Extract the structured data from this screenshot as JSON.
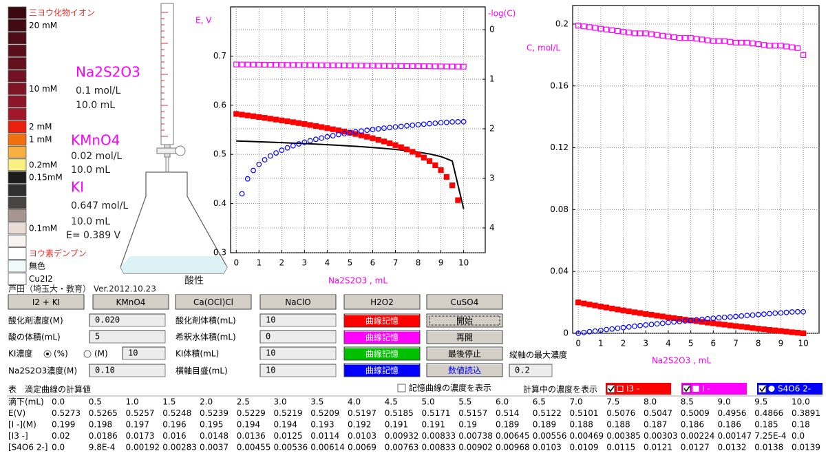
{
  "color_scale": [
    {
      "color": "#3a0810",
      "label": "三ヨウ化物イオン",
      "label_color": "#e8302a"
    },
    {
      "color": "#420a14",
      "label": "20 mM"
    },
    {
      "color": "#4e0c18"
    },
    {
      "color": "#5a0e1c"
    },
    {
      "color": "#66101e"
    },
    {
      "color": "#721222"
    },
    {
      "color": "#7e1426",
      "label": "10 mM"
    },
    {
      "color": "#8c1628"
    },
    {
      "color": "#a0182a"
    },
    {
      "color": "#e8200c",
      "label": "2 mM"
    },
    {
      "color": "#f07010",
      "label": "1 mM"
    },
    {
      "color": "#f8b040"
    },
    {
      "color": "#f8f080",
      "label": "0.2mM"
    },
    {
      "color": "#1c1c1c",
      "label": "0.15mM"
    },
    {
      "color": "#303030"
    },
    {
      "color": "#484444"
    },
    {
      "color": "#a89490"
    },
    {
      "color": "#e8dcd4",
      "label": "0.1mM"
    },
    {
      "color": "#f8f4f2"
    },
    {
      "color": "#ffffff",
      "label": "ヨウ素デンプン",
      "label_color": "#e8302a"
    },
    {
      "color": "#f0fafa",
      "label": "無色"
    },
    {
      "color": "#ffffff",
      "label": "Cu2I2"
    }
  ],
  "apparatus": {
    "titrant": {
      "name": "Na2S2O3",
      "concentration": "0.1 mol/L",
      "volume": "10.0 mL"
    },
    "oxidant": {
      "name": "KMnO4",
      "concentration": "0.02 mol/L",
      "volume": "10.0 mL"
    },
    "iodide": {
      "name": "KI",
      "concentration": "0.647 mol/L",
      "volume": "10.0 mL"
    },
    "potential": "E= 0.389 V",
    "condition": "酸性"
  },
  "credit": "芦田（埼玉大・教育）  Ver.2012.10.23",
  "chart_data": [
    {
      "type": "scatter",
      "ylabel": "E, V",
      "y2label": "-log(C)",
      "xlabel": "Na2S2O3 , mL",
      "label_color": "#ff00ff",
      "x": [
        0,
        0.25,
        0.5,
        0.75,
        1,
        1.25,
        1.5,
        1.75,
        2,
        2.25,
        2.5,
        2.75,
        3,
        3.25,
        3.5,
        3.75,
        4,
        4.25,
        4.5,
        4.75,
        5,
        5.25,
        5.5,
        5.75,
        6,
        6.25,
        6.5,
        6.75,
        7,
        7.25,
        7.5,
        7.75,
        8,
        8.25,
        8.5,
        8.75,
        9,
        9.25,
        9.5,
        9.75,
        10
      ],
      "xlim": [
        -0.25,
        10.95
      ],
      "xticks": [
        0,
        1,
        2,
        3,
        4,
        5,
        6,
        7,
        8,
        9,
        10
      ],
      "ylim": [
        0.3,
        0.8
      ],
      "yticks": [
        0.3,
        0.4,
        0.5,
        0.6,
        0.7
      ],
      "y2lim": [
        4.5,
        -0.46
      ],
      "y2ticks": [
        0,
        1,
        2,
        3,
        4
      ],
      "grid": true,
      "series": [
        {
          "marker": "line",
          "color": "#000000",
          "x": [
            0,
            0.5,
            1,
            1.5,
            2,
            2.5,
            3,
            3.5,
            4,
            4.5,
            5,
            5.5,
            6,
            6.5,
            7,
            7.5,
            8,
            8.5,
            9,
            9.5,
            10
          ],
          "values": [
            0.5273,
            0.5265,
            0.5257,
            0.5248,
            0.5239,
            0.5229,
            0.5219,
            0.5209,
            0.5197,
            0.5185,
            0.5171,
            0.5157,
            0.514,
            0.5122,
            0.5101,
            0.5076,
            0.5047,
            0.5009,
            0.4956,
            0.4866,
            0.3891
          ]
        },
        {
          "marker": "open-square",
          "color": "#ff00ff",
          "axis": "y2",
          "values": [
            0.701,
            0.702,
            0.703,
            0.704,
            0.705,
            0.707,
            0.708,
            0.709,
            0.71,
            0.711,
            0.712,
            0.713,
            0.714,
            0.715,
            0.716,
            0.718,
            0.719,
            0.72,
            0.721,
            0.722,
            0.723,
            0.724,
            0.725,
            0.726,
            0.727,
            0.729,
            0.73,
            0.731,
            0.732,
            0.733,
            0.734,
            0.735,
            0.736,
            0.737,
            0.738,
            0.74,
            0.741,
            0.742,
            0.743,
            0.744,
            0.745
          ]
        },
        {
          "marker": "filled-square",
          "color": "#ff0000",
          "axis": "y2",
          "values": [
            1.699,
            1.714,
            1.73,
            1.746,
            1.762,
            1.779,
            1.796,
            1.813,
            1.83,
            1.848,
            1.866,
            1.884,
            1.903,
            1.923,
            1.943,
            1.965,
            1.987,
            2.009,
            2.031,
            2.055,
            2.079,
            2.105,
            2.132,
            2.16,
            2.19,
            2.222,
            2.255,
            2.291,
            2.329,
            2.37,
            2.415,
            2.464,
            2.519,
            2.58,
            2.65,
            2.735,
            2.833,
            2.97,
            3.14,
            3.44,
            null
          ]
        },
        {
          "marker": "open-circle",
          "color": "#0000ff",
          "axis": "y2",
          "values": [
            null,
            3.31,
            3.009,
            2.84,
            2.717,
            2.625,
            2.548,
            2.487,
            2.432,
            2.384,
            2.342,
            2.305,
            2.271,
            2.24,
            2.212,
            2.186,
            2.161,
            2.139,
            2.117,
            2.098,
            2.079,
            2.061,
            2.045,
            2.029,
            2.014,
            2.0,
            1.987,
            1.975,
            1.962,
            1.951,
            1.939,
            1.928,
            1.917,
            1.907,
            1.896,
            1.888,
            1.876,
            1.87,
            1.86,
            1.859,
            1.857
          ]
        }
      ]
    },
    {
      "type": "scatter",
      "ylabel": "C, mol/L",
      "xlabel": "Na2S2O3 , mL",
      "label_color": "#ff00ff",
      "x": [
        0,
        0.25,
        0.5,
        0.75,
        1,
        1.25,
        1.5,
        1.75,
        2,
        2.25,
        2.5,
        2.75,
        3,
        3.25,
        3.5,
        3.75,
        4,
        4.25,
        4.5,
        4.75,
        5,
        5.25,
        5.5,
        5.75,
        6,
        6.25,
        6.5,
        6.75,
        7,
        7.25,
        7.5,
        7.75,
        8,
        8.25,
        8.5,
        8.75,
        9,
        9.25,
        9.5,
        9.75,
        10
      ],
      "xlim": [
        -0.25,
        10.7
      ],
      "xticks": [
        0,
        1,
        2,
        3,
        4,
        5,
        6,
        7,
        8,
        9,
        10
      ],
      "ylim": [
        0,
        0.212
      ],
      "yticks": [
        0,
        0.04,
        0.08,
        0.12,
        0.16,
        0.2
      ],
      "grid": true,
      "series": [
        {
          "name": "I3 -",
          "marker": "filled-square",
          "color": "#ff0000",
          "values": [
            0.02,
            0.0193,
            0.0186,
            0.018,
            0.0173,
            0.0167,
            0.016,
            0.0154,
            0.0148,
            0.0142,
            0.0136,
            0.0131,
            0.0125,
            0.012,
            0.0114,
            0.0109,
            0.0103,
            0.0098,
            0.0093,
            0.0088,
            0.0083,
            0.0079,
            0.0074,
            0.0069,
            0.0065,
            0.006,
            0.0056,
            0.0051,
            0.0047,
            0.0043,
            0.0039,
            0.0034,
            0.003,
            0.0026,
            0.0022,
            0.0019,
            0.0015,
            0.0011,
            0.0007,
            0.0004,
            0
          ]
        },
        {
          "name": "I -",
          "marker": "open-square",
          "color": "#ff00ff",
          "values": [
            0.199,
            0.1985,
            0.198,
            0.1975,
            0.197,
            0.1965,
            0.196,
            0.1955,
            0.195,
            0.1945,
            0.194,
            0.194,
            0.194,
            0.1935,
            0.193,
            0.1925,
            0.192,
            0.1915,
            0.191,
            0.191,
            0.191,
            0.1905,
            0.19,
            0.1895,
            0.189,
            0.189,
            0.189,
            0.1885,
            0.188,
            0.188,
            0.188,
            0.1875,
            0.187,
            0.1865,
            0.186,
            0.186,
            0.186,
            0.1855,
            0.185,
            0.1845,
            0.18
          ]
        },
        {
          "name": "S4O6 2-",
          "marker": "open-circle",
          "color": "#0000ff",
          "values": [
            0,
            0.0005,
            0.001,
            0.0014,
            0.0019,
            0.0024,
            0.0028,
            0.0033,
            0.0037,
            0.0041,
            0.0046,
            0.005,
            0.0054,
            0.0057,
            0.0061,
            0.0065,
            0.0069,
            0.0073,
            0.0076,
            0.008,
            0.0083,
            0.0087,
            0.009,
            0.0094,
            0.0097,
            0.01,
            0.0103,
            0.0106,
            0.0109,
            0.0112,
            0.0115,
            0.0118,
            0.0121,
            0.0124,
            0.0127,
            0.013,
            0.0132,
            0.0135,
            0.0138,
            0.0139,
            0.0139
          ]
        }
      ]
    }
  ],
  "oxidant_buttons": [
    "I2 + KI",
    "KMnO4",
    "Ca(OCl)Cl",
    "NaClO",
    "H2O2",
    "CuSO4"
  ],
  "form": {
    "oxidant_conc": {
      "label": "酸化剤濃度(M)",
      "value": "0.020"
    },
    "acid_volume": {
      "label": "酸の体積(mL)",
      "value": "5"
    },
    "ki_conc": {
      "label": "KI濃度",
      "options": [
        "(%)",
        "(M)"
      ],
      "value": "10"
    },
    "titrant_conc": {
      "label": "Na2S2O3濃度(M)",
      "value": "0.10"
    },
    "oxidant_volume": {
      "label": "酸化剤体積(mL)",
      "value": "10"
    },
    "water_volume": {
      "label": "希釈水体積(mL)",
      "value": "0"
    },
    "ki_volume": {
      "label": "KI体積(mL)",
      "value": "10"
    },
    "x_scale": {
      "label": "横軸目盛(mL)",
      "value": "10"
    },
    "max_conc": {
      "label": "縦軸の最大濃度",
      "value": "0.2"
    }
  },
  "curve_buttons": [
    {
      "label": "曲線記憶",
      "color": "#ff0000"
    },
    {
      "label": "曲線記憶",
      "color": "#ff00ff"
    },
    {
      "label": "曲線記憶",
      "color": "#00c000"
    },
    {
      "label": "曲線記憶",
      "color": "#0000ff"
    }
  ],
  "control_buttons": [
    {
      "label": "開始"
    },
    {
      "label": "再開"
    },
    {
      "label": "最後停止"
    },
    {
      "label": "数値読込",
      "text_color": "#0000ff"
    }
  ],
  "show_stored": "記憶曲線の濃度を表示",
  "show_current": "計算中の濃度を表示",
  "table": {
    "caption": "表　滴定曲線の計算値",
    "rows": [
      [
        "滴下(mL)",
        "0.0",
        "0.5",
        "1.0",
        "1.5",
        "2.0",
        "2.5",
        "3.0",
        "3.5",
        "4.0",
        "4.5",
        "5.0",
        "5.5",
        "6.0",
        "6.5",
        "7.0",
        "7.5",
        "8.0",
        "8.5",
        "9.0",
        "9.5",
        "10.0"
      ],
      [
        "E(V)",
        "0.5273",
        "0.5265",
        "0.5257",
        "0.5248",
        "0.5239",
        "0.5229",
        "0.5219",
        "0.5209",
        "0.5197",
        "0.5185",
        "0.5171",
        "0.5157",
        "0.514",
        "0.5122",
        "0.5101",
        "0.5076",
        "0.5047",
        "0.5009",
        "0.4956",
        "0.4866",
        "0.3891"
      ],
      [
        "[I -](M)",
        "0.199",
        "0.198",
        "0.197",
        "0.196",
        "0.195",
        "0.194",
        "0.194",
        "0.193",
        "0.192",
        "0.191",
        "0.191",
        "0.19",
        "0.189",
        "0.189",
        "0.188",
        "0.188",
        "0.187",
        "0.186",
        "0.186",
        "0.185",
        "0.18"
      ],
      [
        "[I3 -]",
        "0.02",
        "0.0186",
        "0.0173",
        "0.016",
        "0.0148",
        "0.0136",
        "0.0125",
        "0.0114",
        "0.0103",
        "0.00932",
        "0.00833",
        "0.00738",
        "0.00645",
        "0.00556",
        "0.00469",
        "0.00385",
        "0.00303",
        "0.00224",
        "0.00147",
        "7.25E-4",
        "0.0"
      ],
      [
        "[S4O6 2-]",
        "0.0",
        "9.8E-4",
        "0.00192",
        "0.00283",
        "0.0037",
        "0.00455",
        "0.00536",
        "0.00614",
        "0.0069",
        "0.00763",
        "0.00833",
        "0.00902",
        "0.00968",
        "0.0103",
        "0.0109",
        "0.0115",
        "0.0121",
        "0.0127",
        "0.0132",
        "0.0138",
        "0.0139"
      ]
    ]
  }
}
